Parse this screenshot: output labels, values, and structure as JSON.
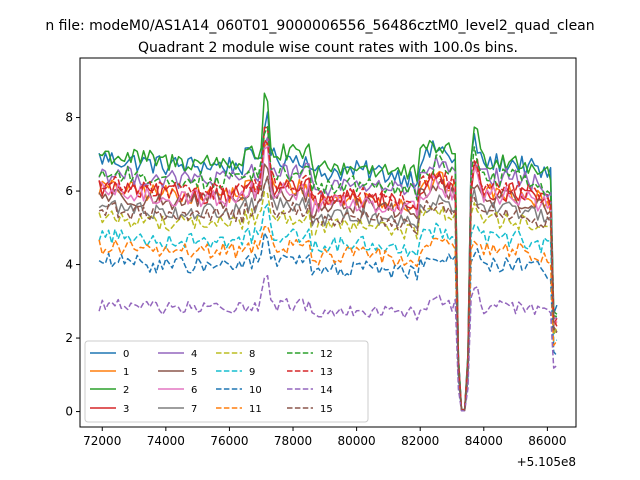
{
  "chart_data": {
    "type": "line",
    "suptitle": "n file: modeM0/AS1A14_060T01_9000006556_56486cztM0_level2_quad_clean",
    "title": "Quadrant 2 module wise count rates with 100.0s bins.",
    "xlabel": "",
    "ylabel": "",
    "x_offset_label": "+5.105e8",
    "xlim": [
      71300,
      86900
    ],
    "ylim": [
      -0.42,
      9.62
    ],
    "x_ticks": [
      72000,
      74000,
      76000,
      78000,
      80000,
      82000,
      84000,
      86000
    ],
    "x_tick_labels": [
      "72000",
      "74000",
      "76000",
      "78000",
      "80000",
      "82000",
      "84000",
      "86000"
    ],
    "y_ticks": [
      0,
      2,
      4,
      6,
      8
    ],
    "y_tick_labels": [
      "0",
      "2",
      "4",
      "6",
      "8"
    ],
    "x_range": [
      71900,
      86300
    ],
    "bin_seconds": 100,
    "legend_position": "lower-left",
    "features": {
      "peak_x": 77150,
      "gap_x": [
        83150,
        83650
      ],
      "gap_center": 83350,
      "bump_x": 82550,
      "spike_x": 83750
    },
    "series": [
      {
        "name": "0",
        "level": 6.9,
        "noise": 0.28,
        "peak": 1.2,
        "color": "#1f77b4",
        "dash": "solid"
      },
      {
        "name": "1",
        "level": 6.1,
        "noise": 0.25,
        "peak": 1.4,
        "color": "#ff7f0e",
        "dash": "solid"
      },
      {
        "name": "2",
        "level": 7.0,
        "noise": 0.28,
        "peak": 1.9,
        "color": "#2ca02c",
        "dash": "solid"
      },
      {
        "name": "3",
        "level": 6.1,
        "noise": 0.26,
        "peak": 1.7,
        "color": "#d62728",
        "dash": "solid"
      },
      {
        "name": "4",
        "level": 6.5,
        "noise": 0.26,
        "peak": 1.1,
        "color": "#9467bd",
        "dash": "solid"
      },
      {
        "name": "5",
        "level": 5.9,
        "noise": 0.24,
        "peak": 1.0,
        "color": "#8c564b",
        "dash": "solid"
      },
      {
        "name": "6",
        "level": 6.0,
        "noise": 0.26,
        "peak": 1.2,
        "color": "#e377c2",
        "dash": "solid"
      },
      {
        "name": "7",
        "level": 5.6,
        "noise": 0.22,
        "peak": 0.9,
        "color": "#7f7f7f",
        "dash": "solid"
      },
      {
        "name": "8",
        "level": 5.3,
        "noise": 0.22,
        "peak": 0.9,
        "color": "#bcbd22",
        "dash": "dashed"
      },
      {
        "name": "9",
        "level": 4.8,
        "noise": 0.22,
        "peak": 0.8,
        "color": "#17becf",
        "dash": "dashed"
      },
      {
        "name": "10",
        "level": 4.1,
        "noise": 0.22,
        "peak": 0.7,
        "color": "#1f77b4",
        "dash": "dashed"
      },
      {
        "name": "11",
        "level": 4.5,
        "noise": 0.22,
        "peak": 0.8,
        "color": "#ff7f0e",
        "dash": "dashed"
      },
      {
        "name": "12",
        "level": 6.5,
        "noise": 0.24,
        "peak": 1.3,
        "color": "#2ca02c",
        "dash": "dashed"
      },
      {
        "name": "13",
        "level": 6.2,
        "noise": 0.24,
        "peak": 1.3,
        "color": "#d62728",
        "dash": "dashed"
      },
      {
        "name": "14",
        "level": 2.9,
        "noise": 0.18,
        "peak": 1.1,
        "color": "#9467bd",
        "dash": "dashed"
      },
      {
        "name": "15",
        "level": 5.5,
        "noise": 0.22,
        "peak": 0.9,
        "color": "#8c564b",
        "dash": "dashed"
      }
    ]
  }
}
